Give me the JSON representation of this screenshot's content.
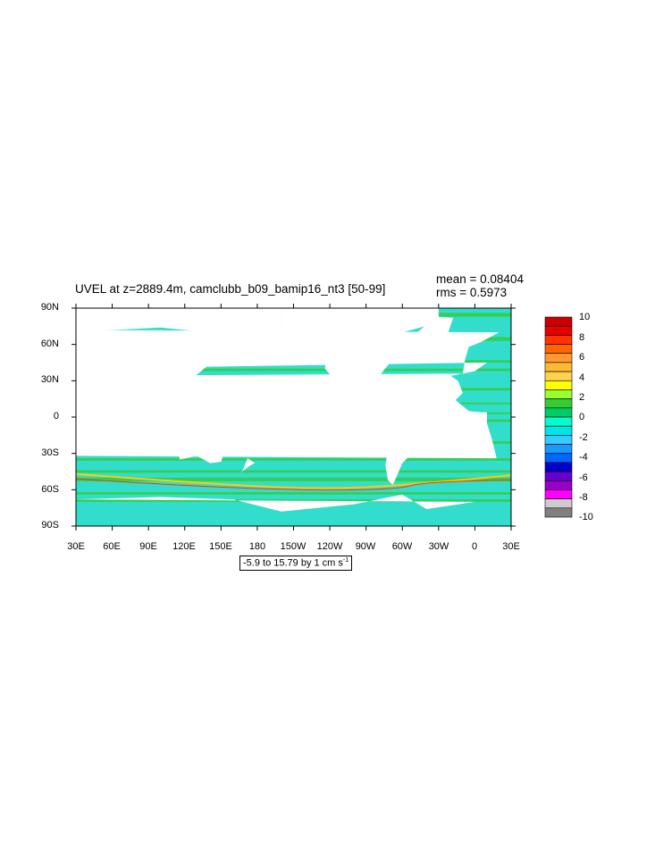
{
  "title": "UVEL at z=2889.4m, camclubb_b09_bamip16_nt3 [50-99]",
  "stats": {
    "mean": "mean = 0.08404",
    "rms": "rms = 0.5973"
  },
  "range_label": {
    "text": "-5.9 to 15.79 by 1 cm s",
    "superscript": "-1"
  },
  "lat_labels": [
    "90N",
    "60N",
    "30N",
    "0",
    "30S",
    "60S",
    "90S"
  ],
  "lon_labels": [
    "30E",
    "60E",
    "90E",
    "120E",
    "150E",
    "180",
    "150W",
    "120W",
    "90W",
    "60W",
    "30W",
    "0",
    "30E"
  ],
  "colorbar": {
    "labels": [
      "10",
      "8",
      "6",
      "4",
      "2",
      "0",
      "-2",
      "-4",
      "-6",
      "-8",
      "-10"
    ],
    "colors": [
      "#cc0000",
      "#e60000",
      "#ff3300",
      "#ff6600",
      "#ff9933",
      "#ffb833",
      "#ffd24d",
      "#ffff00",
      "#99ff33",
      "#33cc33",
      "#00cc66",
      "#00ffcc",
      "#00e6e6",
      "#33ccff",
      "#1a99ff",
      "#0066ff",
      "#0000cc",
      "#6600cc",
      "#9900cc",
      "#ff00ff",
      "#cccccc",
      "#808080"
    ]
  },
  "map": {
    "land_color": "#ffffff",
    "ocean_base_color": "#33ddcc",
    "band_color": "#33cc33",
    "strong_positive_color": "#ffcc00",
    "strong_max_color": "#ff3300"
  }
}
